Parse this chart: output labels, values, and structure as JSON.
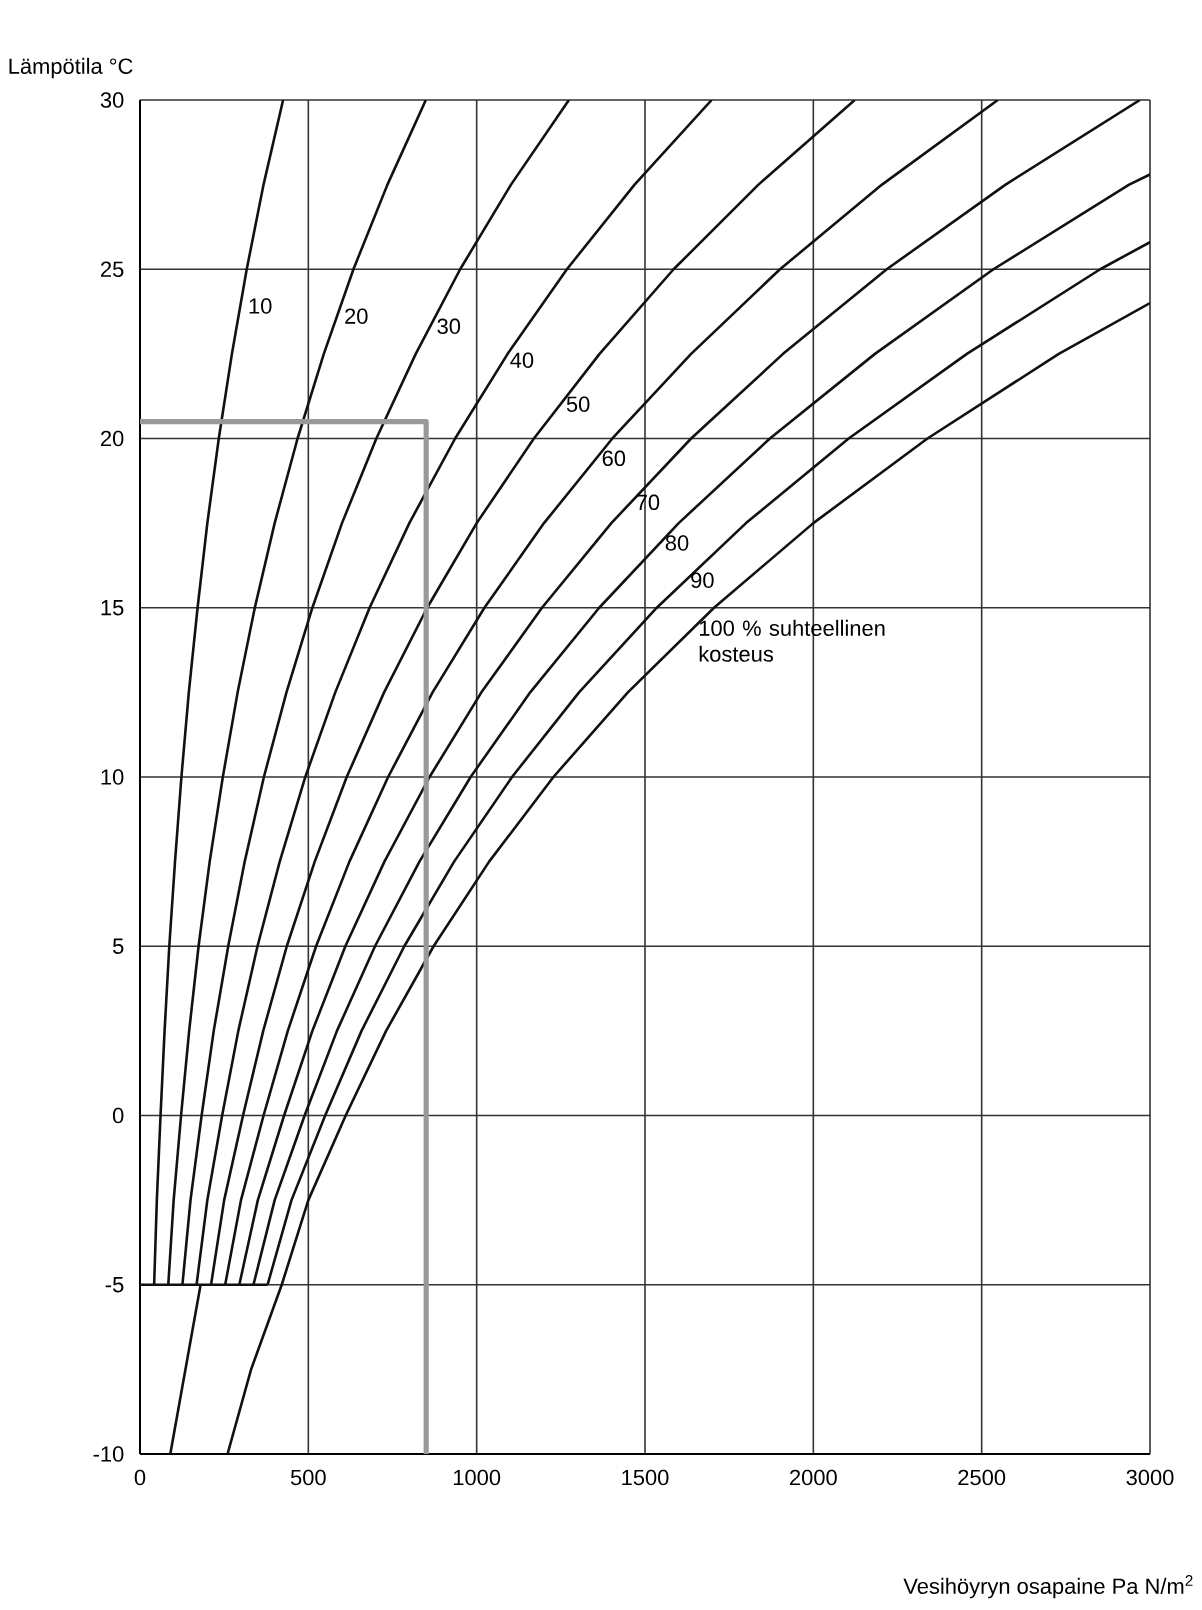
{
  "chart_data": {
    "type": "line",
    "ylabel": "Lämpötila °C",
    "xlabel": "Vesihöyryn osapaine Pa N/m$^{2}$",
    "xlim": [
      0,
      3000
    ],
    "ylim": [
      -10,
      30
    ],
    "xticks": [
      0,
      500,
      1000,
      1500,
      2000,
      2500,
      3000
    ],
    "yticks": [
      -10,
      -5,
      0,
      5,
      10,
      15,
      20,
      25,
      30
    ],
    "grid": true,
    "series": [
      {
        "name": "10",
        "color": "#111111",
        "x": [
          42,
          50,
          61,
          73,
          87,
          104,
          123,
          145,
          171,
          200,
          234,
          273,
          317,
          367,
          425
        ],
        "values": [
          -5,
          -2.5,
          0,
          2.5,
          5,
          7.5,
          10,
          12.5,
          15,
          17.5,
          20,
          22.5,
          25,
          27.5,
          30
        ]
      },
      {
        "name": "20",
        "color": "#111111",
        "x": [
          84,
          100,
          122,
          146,
          174,
          207,
          246,
          290,
          341,
          400,
          468,
          546,
          634,
          735,
          849
        ],
        "values": [
          -5,
          -2.5,
          0,
          2.5,
          5,
          7.5,
          10,
          12.5,
          15,
          17.5,
          20,
          22.5,
          25,
          27.5,
          30
        ]
      },
      {
        "name": "30",
        "color": "#111111",
        "x": [
          126,
          150,
          183,
          219,
          262,
          311,
          368,
          435,
          512,
          600,
          702,
          819,
          951,
          1102,
          1274
        ],
        "values": [
          -5,
          -2.5,
          0,
          2.5,
          5,
          7.5,
          10,
          12.5,
          15,
          17.5,
          20,
          22.5,
          25,
          27.5,
          30
        ]
      },
      {
        "name": "40",
        "color": "#111111",
        "x": [
          168,
          200,
          244,
          292,
          349,
          415,
          491,
          580,
          682,
          800,
          936,
          1092,
          1268,
          1469,
          1698
        ],
        "values": [
          -5,
          -2.5,
          0,
          2.5,
          5,
          7.5,
          10,
          12.5,
          15,
          17.5,
          20,
          22.5,
          25,
          27.5,
          30
        ]
      },
      {
        "name": "50",
        "color": "#111111",
        "x": [
          211,
          250,
          306,
          366,
          436,
          519,
          614,
          725,
          853,
          1000,
          1170,
          1365,
          1585,
          1837,
          2123
        ],
        "values": [
          -5,
          -2.5,
          0,
          2.5,
          5,
          7.5,
          10,
          12.5,
          15,
          17.5,
          20,
          22.5,
          25,
          27.5,
          30
        ]
      },
      {
        "name": "60",
        "color": "#111111",
        "x": [
          253,
          300,
          367,
          439,
          523,
          622,
          737,
          869,
          1023,
          1200,
          1403,
          1637,
          1901,
          2204,
          2548
        ],
        "values": [
          -5,
          -2.5,
          0,
          2.5,
          5,
          7.5,
          10,
          12.5,
          15,
          17.5,
          20,
          22.5,
          25,
          27.5,
          30
        ]
      },
      {
        "name": "70",
        "color": "#111111",
        "x": [
          295,
          350,
          428,
          512,
          610,
          726,
          860,
          1014,
          1194,
          1400,
          1637,
          1910,
          2218,
          2571,
          2970
        ],
        "values": [
          -5,
          -2.5,
          0,
          2.5,
          5,
          7.5,
          10,
          12.5,
          15,
          17.5,
          20,
          22.5,
          25,
          27.5,
          30
        ]
      },
      {
        "name": "80",
        "color": "#111111",
        "x": [
          337,
          400,
          489,
          585,
          698,
          830,
          982,
          1159,
          1364,
          1600,
          1871,
          2183,
          2535,
          2938,
          3000
        ],
        "values": [
          -5,
          -2.5,
          0,
          2.5,
          5,
          7.5,
          10,
          12.5,
          15,
          17.5,
          20,
          22.5,
          25,
          27.5,
          27.8
        ]
      },
      {
        "name": "90",
        "color": "#111111",
        "x": [
          379,
          450,
          550,
          658,
          785,
          933,
          1105,
          1304,
          1535,
          1800,
          2105,
          2456,
          2852,
          3000
        ],
        "values": [
          -5,
          -2.5,
          0,
          2.5,
          5,
          7.5,
          10,
          12.5,
          15,
          17.5,
          20,
          22.5,
          25,
          25.8
        ]
      },
      {
        "name": "100 % suhteellinen kosteus",
        "color": "#111111",
        "x": [
          260,
          330,
          421,
          500,
          611,
          731,
          872,
          1037,
          1228,
          1449,
          1705,
          2000,
          2339,
          2729,
          3000
        ],
        "values": [
          -10,
          -7.5,
          -5,
          -2.5,
          0,
          2.5,
          5,
          7.5,
          10,
          12.5,
          15,
          17.5,
          20,
          22.5,
          24.0
        ]
      },
      {
        "color": "#111111",
        "x": [
          90,
          180
        ],
        "values": [
          -10,
          -5
        ]
      },
      {
        "color": "#111111",
        "x": [
          0,
          379
        ],
        "values": [
          -5,
          -5
        ]
      },
      {
        "color": "#999999",
        "x": [
          0,
          850,
          850
        ],
        "values": [
          20.5,
          20.5,
          -10
        ]
      }
    ]
  }
}
